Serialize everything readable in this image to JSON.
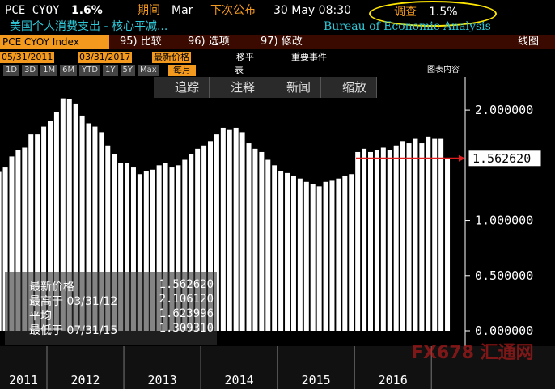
{
  "header": {
    "ticker": "PCE CYOY",
    "last": "1.6%",
    "period_label": "期间",
    "period": "Mar",
    "next_label": "下次公布",
    "next": "30 May 08:30",
    "survey_label": "调查",
    "survey": "1.5%",
    "description": "美国个人消费支出 - 核心平减...",
    "source": "Bureau of Economic Analysis"
  },
  "toolbar": {
    "security": "PCE CYOY Index",
    "compare": "95) 比较",
    "options": "96) 选项",
    "modify": "97) 修改",
    "chart_type": "线图",
    "start_date": "05/31/2011",
    "end_date": "03/31/2017",
    "field": "最新价格",
    "moving_avg": "移平",
    "events": "重要事件",
    "ranges": [
      "1D",
      "3D",
      "1M",
      "6M",
      "YTD",
      "1Y",
      "5Y",
      "Max"
    ],
    "frequency": "每月",
    "table": "表",
    "chart_content": "图表内容",
    "tools": [
      "追踪",
      "注释",
      "新闻",
      "缩放"
    ]
  },
  "legend": [
    {
      "label": "最新价格",
      "value": "1.562620"
    },
    {
      "label": "最高于 03/31/12",
      "value": "2.106120"
    },
    {
      "label": "平均",
      "value": "1.623996"
    },
    {
      "label": "最低于 07/31/15",
      "value": "1.309310"
    }
  ],
  "watermark": "FX678 汇通网",
  "chart_data": {
    "type": "bar",
    "color": "#ffffff",
    "values": [
      1.44,
      1.48,
      1.58,
      1.64,
      1.66,
      1.78,
      1.78,
      1.85,
      1.9,
      1.98,
      2.10612,
      2.1,
      2.06,
      1.95,
      1.88,
      1.85,
      1.8,
      1.68,
      1.6,
      1.52,
      1.52,
      1.48,
      1.42,
      1.45,
      1.46,
      1.5,
      1.52,
      1.48,
      1.5,
      1.55,
      1.6,
      1.65,
      1.68,
      1.72,
      1.78,
      1.84,
      1.82,
      1.84,
      1.8,
      1.7,
      1.65,
      1.62,
      1.55,
      1.5,
      1.45,
      1.43,
      1.4,
      1.38,
      1.35,
      1.33,
      1.30931,
      1.35,
      1.36,
      1.38,
      1.4,
      1.42,
      1.62,
      1.65,
      1.62,
      1.64,
      1.66,
      1.64,
      1.68,
      1.72,
      1.7,
      1.74,
      1.7,
      1.76,
      1.74,
      1.74,
      1.56262
    ],
    "last_value_label": "1.562620",
    "xticks": [
      "2011",
      "2012",
      "2013",
      "2014",
      "2015",
      "2016"
    ],
    "ylim": [
      0,
      2.25
    ],
    "yticks": [
      {
        "value": 0,
        "label": "0.000000"
      },
      {
        "value": 0.5,
        "label": "0.500000"
      },
      {
        "value": 1,
        "label": "1.000000"
      },
      {
        "value": 2,
        "label": "2.000000"
      }
    ]
  }
}
